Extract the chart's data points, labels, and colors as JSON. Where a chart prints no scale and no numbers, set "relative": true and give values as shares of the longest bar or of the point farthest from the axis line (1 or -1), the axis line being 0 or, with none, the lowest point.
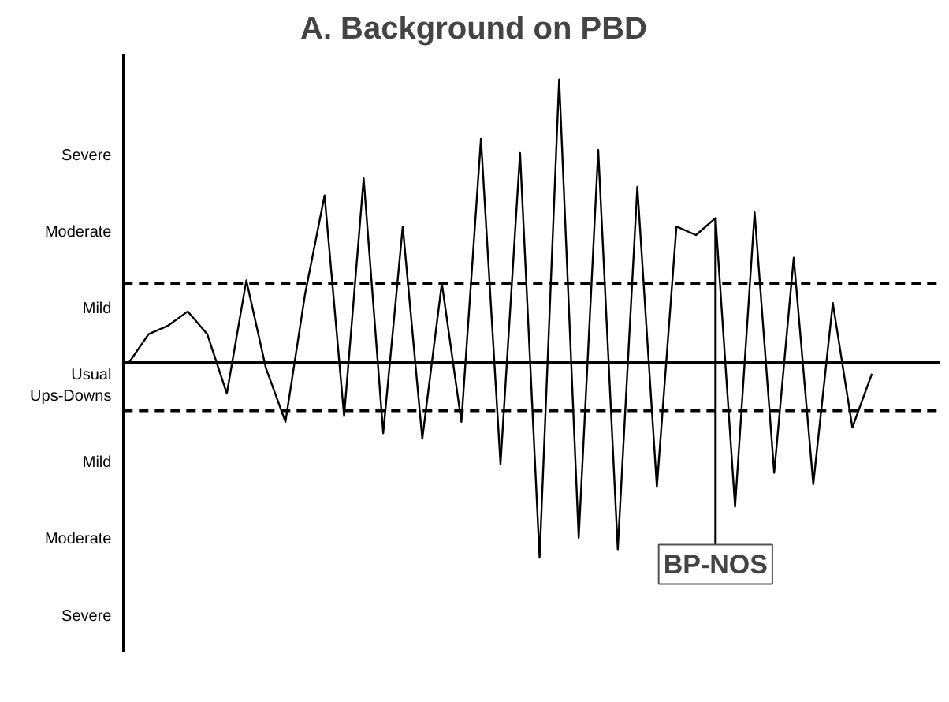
{
  "chart_data": {
    "type": "line",
    "title": "A. Background on PBD",
    "relative": true,
    "categories": [
      null,
      null,
      null,
      null,
      null,
      null,
      null,
      null,
      null,
      null,
      null,
      null,
      null,
      null,
      null,
      null,
      null,
      null,
      null,
      null,
      null,
      null,
      null,
      null,
      null,
      null,
      null,
      null,
      null,
      null,
      null,
      null,
      null,
      null,
      null,
      null,
      null,
      null,
      null
    ],
    "tick_labels": false,
    "grid": false,
    "line_style": "solid",
    "series": [
      {
        "color": "#000000",
        "values": [
          0,
          0.1,
          0.13,
          0.18,
          0.1,
          -0.11,
          0.29,
          -0.02,
          -0.21,
          0.24,
          0.59,
          -0.19,
          0.65,
          -0.25,
          0.48,
          -0.27,
          0.28,
          -0.21,
          0.79,
          -0.36,
          0.74,
          -0.69,
          1,
          -0.62,
          0.75,
          -0.66,
          0.62,
          -0.44,
          0.48,
          0.45,
          0.51,
          -0.51,
          0.53,
          -0.39,
          0.37,
          -0.43,
          0.21,
          -0.23,
          -0.04
        ]
      }
    ],
    "ref_lines": [
      {
        "axis": "y",
        "value": 0.28,
        "line_style": "dashed",
        "color": "#000000"
      },
      {
        "axis": "y",
        "value": 0,
        "line_style": "solid",
        "color": "#000000"
      },
      {
        "axis": "y",
        "value": -0.17,
        "line_style": "dashed",
        "color": "#000000"
      }
    ],
    "annotations": [
      "Severe",
      "Moderate",
      "Mild",
      "Usual\nUps-Downs",
      "Mild",
      "Moderate",
      "Severe",
      {
        "text": "BP-NOS",
        "y": 0.51
      }
    ]
  }
}
